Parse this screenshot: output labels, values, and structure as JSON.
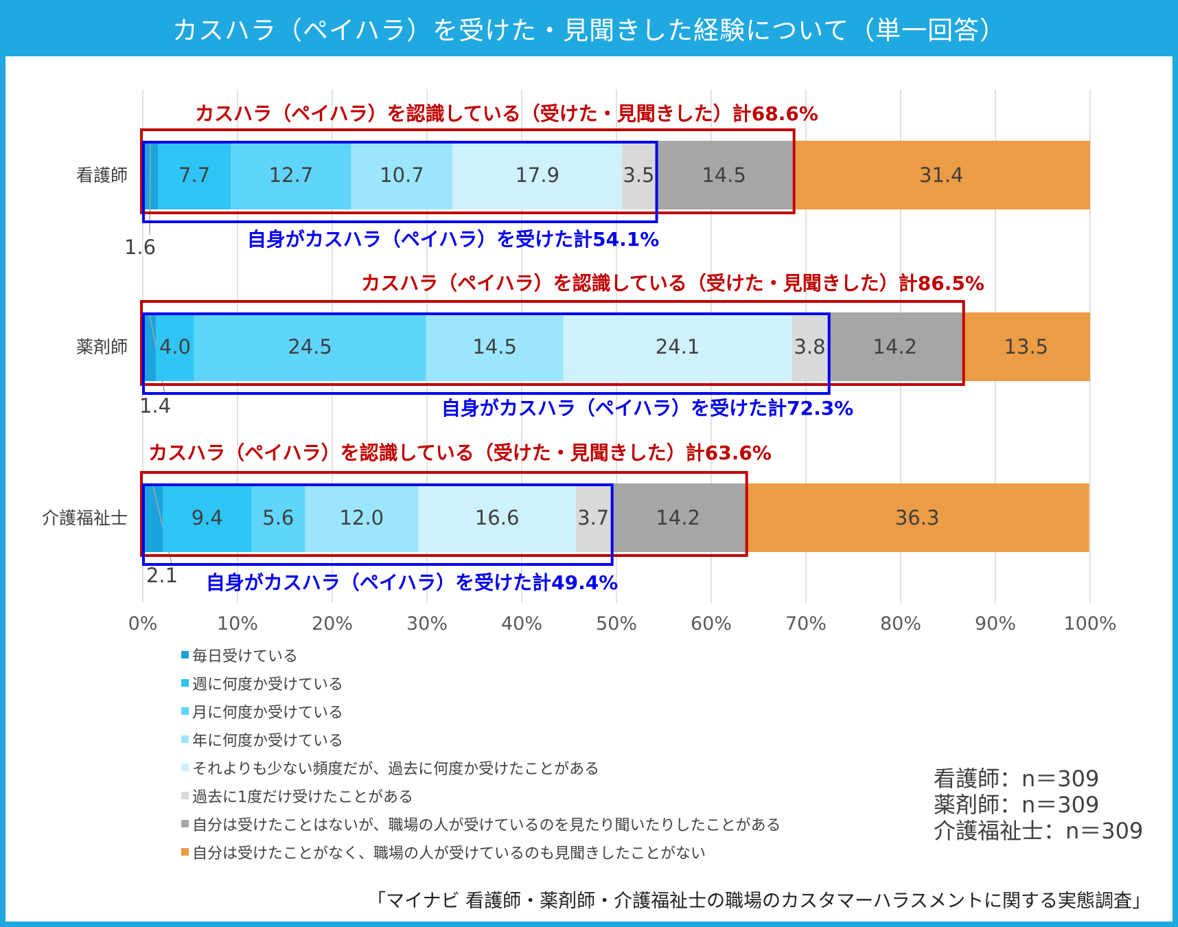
{
  "title": "カスハラ（ペイハラ）を受けた・見聞きした経験について（単一回答）",
  "chart_data": {
    "type": "stacked-bar-horizontal",
    "title": "カスハラ（ペイハラ）を受けた・見聞きした経験について（単一回答）",
    "xlim": [
      0,
      100
    ],
    "x_ticks": [
      "0%",
      "10%",
      "20%",
      "30%",
      "40%",
      "50%",
      "60%",
      "70%",
      "80%",
      "90%",
      "100%"
    ],
    "categories": [
      "看護師",
      "薬剤師",
      "介護福祉士"
    ],
    "series": [
      {
        "name": "毎日受けている",
        "color": "#1aa3dd",
        "values": [
          1.6,
          1.4,
          2.1
        ]
      },
      {
        "name": "週に何度か受けている",
        "color": "#2ec5f5",
        "values": [
          7.7,
          4.0,
          9.4
        ]
      },
      {
        "name": "月に何度か受けている",
        "color": "#5fd5fb",
        "values": [
          12.7,
          24.5,
          5.6
        ]
      },
      {
        "name": "年に何度か受けている",
        "color": "#9be6fc",
        "values": [
          10.7,
          14.5,
          12.0
        ]
      },
      {
        "name": "それよりも少ない頻度だが、過去に何度か受けたことがある",
        "color": "#cdf2fd",
        "values": [
          17.9,
          24.1,
          16.6
        ]
      },
      {
        "name": "過去に1度だけ受けたことがある",
        "color": "#d9d9d9",
        "values": [
          3.5,
          3.8,
          3.7
        ]
      },
      {
        "name": "自分は受けたことはないが、職場の人が受けているのを見たり聞いたりしたことがある",
        "color": "#a6a6a6",
        "values": [
          14.5,
          14.2,
          14.2
        ]
      },
      {
        "name": "自分は受けたことがなく、職場の人が受けているのも見聞きしたことがない",
        "color": "#ec9c44",
        "values": [
          31.4,
          13.5,
          36.3
        ]
      }
    ],
    "value_labels": [
      [
        "1.6",
        "7.7",
        "12.7",
        "10.7",
        "17.9",
        "3.5",
        "14.5",
        "31.4"
      ],
      [
        "1.4",
        "4.0",
        "24.5",
        "14.5",
        "24.1",
        "3.8",
        "14.2",
        "13.5"
      ],
      [
        "2.1",
        "9.4",
        "5.6",
        "12.0",
        "16.6",
        "3.7",
        "14.2",
        "36.3"
      ]
    ],
    "annotations": [
      {
        "category": "看護師",
        "recognized_total": 68.6,
        "recognized_label": "カスハラ（ペイハラ）を認識している（受けた・見聞きした）計68.6%",
        "received_total": 54.1,
        "received_label": "自身がカスハラ（ペイハラ）を受けた計54.1%"
      },
      {
        "category": "薬剤師",
        "recognized_total": 86.5,
        "recognized_label": "カスハラ（ペイハラ）を認識している（受けた・見聞きした）計86.5%",
        "received_total": 72.3,
        "received_label": "自身がカスハラ（ペイハラ）を受けた計72.3%"
      },
      {
        "category": "介護福祉士",
        "recognized_total": 63.6,
        "recognized_label": "カスハラ（ペイハラ）を認識している（受けた・見聞きした）計63.6%",
        "received_total": 49.4,
        "received_label": "自身がカスハラ（ペイハラ）を受けた計49.4%"
      }
    ],
    "annotation_colors": {
      "recognized": "#c00000",
      "received": "#0000ee"
    }
  },
  "sample_sizes": [
    "看護師：n＝309",
    "薬剤師：n＝309",
    "介護福祉士：n＝309"
  ],
  "source": "「マイナビ 看護師・薬剤師・介護福祉士の職場のカスタマーハラスメントに関する実態調査」"
}
